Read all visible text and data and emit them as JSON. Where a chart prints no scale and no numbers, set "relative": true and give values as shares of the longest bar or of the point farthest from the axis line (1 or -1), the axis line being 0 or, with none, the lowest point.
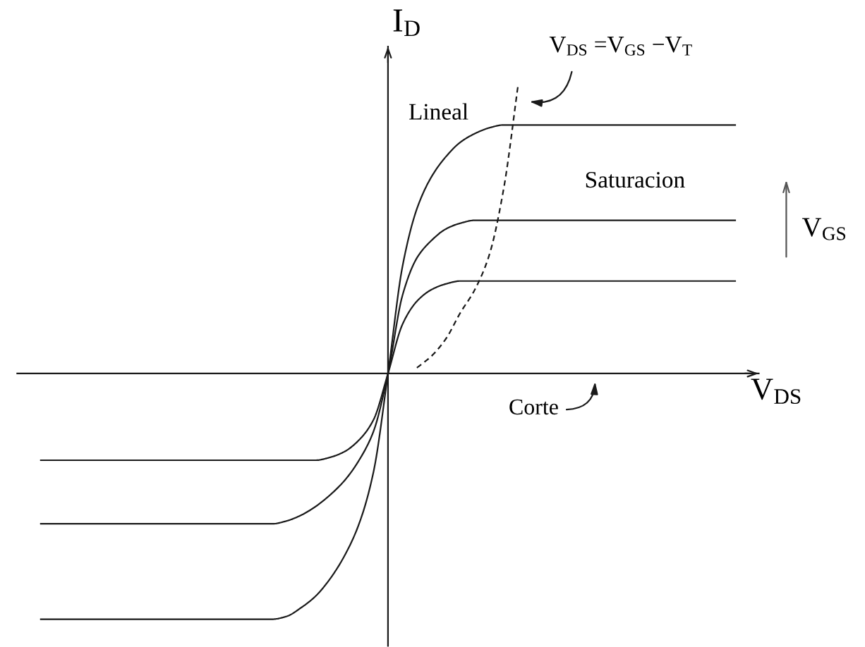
{
  "chart_data": {
    "type": "line",
    "relative": true,
    "xlabel": "V$_{DS}$",
    "ylabel": "I$_{D}$",
    "annotations": [
      "V$_{DS}$ =V$_{GS}$ −V$_{T}$",
      "Lineal",
      "Saturacion",
      "V$_{GS}$",
      "Corte"
    ],
    "line_style": "solid",
    "marker": "none",
    "categories": [
      null,
      null,
      null,
      null,
      null,
      null,
      null,
      null,
      null,
      null,
      null,
      null,
      null,
      null,
      null,
      null,
      null,
      null,
      null,
      null,
      null,
      null,
      null,
      null,
      null,
      null,
      null,
      null,
      null,
      null,
      null,
      null,
      null,
      null,
      null,
      null,
      null,
      null,
      null,
      null,
      null,
      null,
      null,
      null,
      null,
      null,
      null,
      null,
      null
    ],
    "series": [
      {
        "color": "#1a1a1a",
        "values": [
          -0.85,
          -0.85,
          -0.85,
          -0.85,
          -0.85,
          -0.85,
          -0.85,
          -0.85,
          -0.85,
          -0.85,
          -0.85,
          -0.85,
          -0.85,
          -0.85,
          -0.85,
          -0.85,
          -0.85,
          -0.84,
          -0.81,
          -0.77,
          -0.71,
          -0.63,
          -0.52,
          -0.34,
          0,
          0.37,
          0.57,
          0.68,
          0.75,
          0.8,
          0.83,
          0.85,
          0.86,
          0.86,
          0.86,
          0.86,
          0.86,
          0.86,
          0.86,
          0.86,
          0.86,
          0.86,
          0.86,
          0.86,
          0.86,
          0.86,
          0.86,
          0.86,
          0.86
        ]
      },
      {
        "color": "#1a1a1a",
        "values": [
          -0.52,
          -0.52,
          -0.52,
          -0.52,
          -0.52,
          -0.52,
          -0.52,
          -0.52,
          -0.52,
          -0.52,
          -0.52,
          -0.52,
          -0.52,
          -0.52,
          -0.52,
          -0.52,
          -0.52,
          -0.51,
          -0.49,
          -0.46,
          -0.42,
          -0.37,
          -0.3,
          -0.2,
          0,
          0.27,
          0.4,
          0.46,
          0.5,
          0.52,
          0.53,
          0.53,
          0.53,
          0.53,
          0.53,
          0.53,
          0.53,
          0.53,
          0.53,
          0.53,
          0.53,
          0.53,
          0.53,
          0.53,
          0.53,
          0.53,
          0.53,
          0.53,
          0.53
        ]
      },
      {
        "color": "#1a1a1a",
        "values": [
          -0.3,
          -0.3,
          -0.3,
          -0.3,
          -0.3,
          -0.3,
          -0.3,
          -0.3,
          -0.3,
          -0.3,
          -0.3,
          -0.3,
          -0.3,
          -0.3,
          -0.3,
          -0.3,
          -0.3,
          -0.3,
          -0.3,
          -0.3,
          -0.29,
          -0.27,
          -0.23,
          -0.16,
          0,
          0.17,
          0.25,
          0.29,
          0.31,
          0.32,
          0.32,
          0.32,
          0.32,
          0.32,
          0.32,
          0.32,
          0.32,
          0.32,
          0.32,
          0.32,
          0.32,
          0.32,
          0.32,
          0.32,
          0.32,
          0.32,
          0.32,
          0.32,
          0.32
        ]
      },
      {
        "color": "#1a1a1a",
        "line_style": "dashed",
        "values": [
          null,
          null,
          null,
          null,
          null,
          null,
          null,
          null,
          null,
          null,
          null,
          null,
          null,
          null,
          null,
          null,
          null,
          null,
          null,
          null,
          null,
          null,
          null,
          null,
          null,
          null,
          0.02,
          0.06,
          0.12,
          0.21,
          0.29,
          0.41,
          0.64,
          1.0,
          null,
          null,
          null,
          null,
          null,
          null,
          null,
          null,
          null,
          null,
          null,
          null,
          null,
          null,
          null
        ]
      }
    ]
  }
}
